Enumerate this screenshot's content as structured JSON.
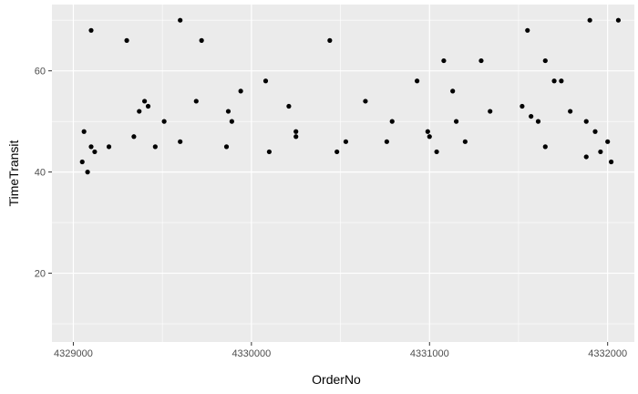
{
  "chart_data": {
    "type": "scatter",
    "title": "",
    "xlabel": "OrderNo",
    "ylabel": "TimeTransit",
    "xlim": [
      4328880,
      4332150
    ],
    "ylim": [
      6.4,
      73.1
    ],
    "x_ticks": [
      4329000,
      4330000,
      4331000,
      4332000
    ],
    "x_tick_labels": [
      "4329000",
      "4330000",
      "4331000",
      "4332000"
    ],
    "y_ticks": [
      20,
      40,
      60
    ],
    "y_tick_labels": [
      "20",
      "40",
      "60"
    ],
    "grid": true,
    "legend": "none",
    "background_color": "#ebebeb",
    "gridline_color": "#ffffff",
    "point_color": "#000000",
    "series": [
      {
        "points": [
          [
            4329100,
            68
          ],
          [
            4329600,
            70
          ],
          [
            4329300,
            66
          ],
          [
            4329720,
            66
          ],
          [
            4330440,
            66
          ],
          [
            4331900,
            70
          ],
          [
            4332060,
            70
          ],
          [
            4331550,
            68
          ],
          [
            4331650,
            62
          ],
          [
            4331080,
            62
          ],
          [
            4331290,
            62
          ],
          [
            4331700,
            58
          ],
          [
            4331740,
            58
          ],
          [
            4330080,
            58
          ],
          [
            4330930,
            58
          ],
          [
            4329400,
            54
          ],
          [
            4329690,
            54
          ],
          [
            4330640,
            54
          ],
          [
            4331130,
            56
          ],
          [
            4329940,
            56
          ],
          [
            4329370,
            52
          ],
          [
            4329420,
            53
          ],
          [
            4329870,
            52
          ],
          [
            4330210,
            53
          ],
          [
            4331340,
            52
          ],
          [
            4331520,
            53
          ],
          [
            4331570,
            51
          ],
          [
            4331610,
            50
          ],
          [
            4331790,
            52
          ],
          [
            4331880,
            50
          ],
          [
            4329510,
            50
          ],
          [
            4329890,
            50
          ],
          [
            4330790,
            50
          ],
          [
            4331150,
            50
          ],
          [
            4331930,
            48
          ],
          [
            4330250,
            48
          ],
          [
            4330250,
            47
          ],
          [
            4330990,
            48
          ],
          [
            4331000,
            47
          ],
          [
            4329060,
            48
          ],
          [
            4329340,
            47
          ],
          [
            4329200,
            45
          ],
          [
            4329460,
            45
          ],
          [
            4329600,
            46
          ],
          [
            4330530,
            46
          ],
          [
            4330480,
            44
          ],
          [
            4330760,
            46
          ],
          [
            4331200,
            46
          ],
          [
            4331040,
            44
          ],
          [
            4331650,
            45
          ],
          [
            4332000,
            46
          ],
          [
            4331960,
            44
          ],
          [
            4332020,
            42
          ],
          [
            4331880,
            43
          ],
          [
            4330100,
            44
          ],
          [
            4329860,
            45
          ],
          [
            4329100,
            45
          ],
          [
            4329120,
            44
          ],
          [
            4329050,
            42
          ],
          [
            4329080,
            40
          ]
        ]
      }
    ]
  }
}
